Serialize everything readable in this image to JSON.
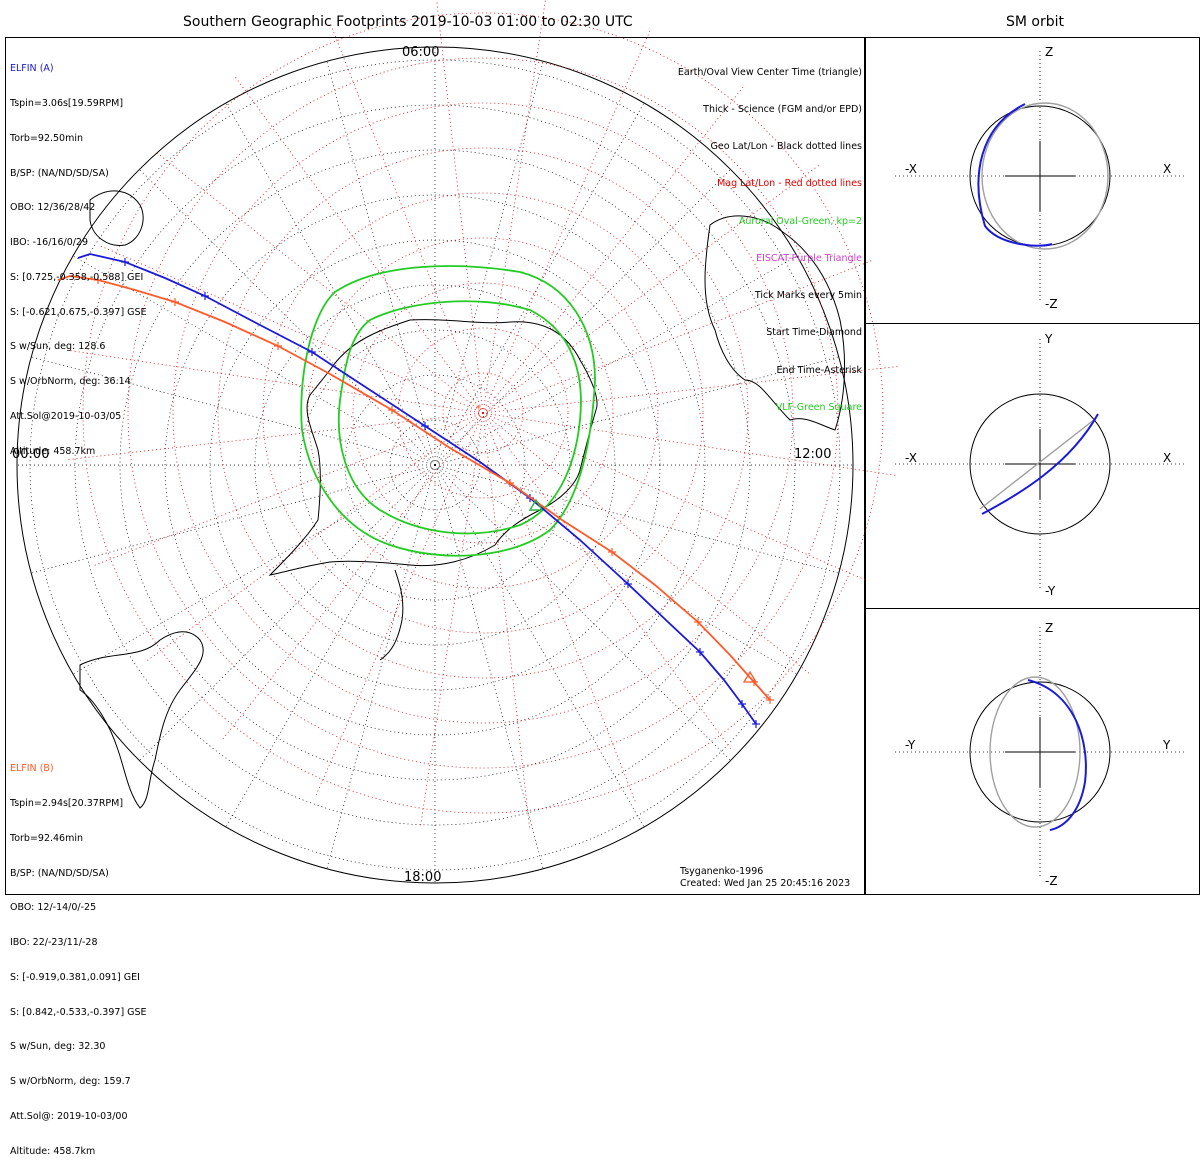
{
  "main_title": "Southern Geographic Footprints 2019-10-03 01:00 to 02:30 UTC",
  "orbit_title": "SM orbit",
  "mlt_labels": {
    "top": "06:00",
    "left": "00:00",
    "right": "12:00",
    "bottom": "18:00"
  },
  "elfin_a": {
    "name": "ELFIN (A)",
    "color": "#1a1ad8",
    "lines": [
      "Tspin=3.06s[19.59RPM]",
      "Torb=92.50min",
      "B/SP: (NA/ND/SD/SA)",
      "OBO: 12/36/28/42",
      "IBO: -16/16/0/29",
      "S: [0.725,-0.358,-0.588] GEI",
      "S: [-0.621,0.675,-0.397] GSE",
      "S w/Sun, deg: 128.6",
      "S w/OrbNorm, deg: 36.14",
      "Att.Sol@2019-10-03/05",
      "Altitude: 458.7km"
    ]
  },
  "elfin_b": {
    "name": "ELFIN (B)",
    "color": "#ff5a2a",
    "lines": [
      "Tspin=2.94s[20.37RPM]",
      "Torb=92.46min",
      "B/SP: (NA/ND/SD/SA)",
      "OBO: 12/-14/0/-25",
      "IBO: 22/-23/11/-28",
      "S: [-0.919,0.381,0.091] GEI",
      "S: [0.842,-0.533,-0.397] GSE",
      "S w/Sun, deg: 32.30",
      "S w/OrbNorm, deg: 159.7",
      "Att.Sol@: 2019-10-03/00",
      "Altitude: 458.7km"
    ]
  },
  "legend": [
    {
      "text": "Earth/Oval View Center Time (triangle)",
      "color": "#000000"
    },
    {
      "text": "Thick - Science (FGM and/or EPD)",
      "color": "#000000"
    },
    {
      "text": "Geo Lat/Lon - Black dotted lines",
      "color": "#000000"
    },
    {
      "text": "Mag Lat/Lon - Red dotted lines",
      "color": "#e00000"
    },
    {
      "text": "Auroral Oval-Green, kp=2",
      "color": "#22cc22"
    },
    {
      "text": "EISCAT-Purple Triangle",
      "color": "#d040d0"
    },
    {
      "text": "Tick Marks every 5min",
      "color": "#000000"
    },
    {
      "text": "Start Time-Diamond",
      "color": "#000000"
    },
    {
      "text": "End Time-Asterisk",
      "color": "#000000"
    },
    {
      "text": "VLF-Green Square",
      "color": "#22cc22"
    }
  ],
  "footer": {
    "model": "Tsyganenko-1996",
    "created": "Created: Wed Jan 25 20:45:16 2023"
  },
  "orbit_panels": [
    {
      "top": "Z",
      "bottom": "-Z",
      "left": "-X",
      "right": "X"
    },
    {
      "top": "Y",
      "bottom": "-Y",
      "left": "-X",
      "right": "X"
    },
    {
      "top": "Z",
      "bottom": "-Z",
      "left": "-Y",
      "right": "Y"
    }
  ],
  "colors": {
    "elfin_a": "#1a1ad8",
    "elfin_b": "#ff5a2a",
    "oval": "#22cc22",
    "mag_grid": "#e00000",
    "orbit_gray": "#a0a0a0"
  },
  "chart_data": {
    "type": "map",
    "title": "Southern Geographic Footprints 2019-10-03 01:00 to 02:30 UTC",
    "projection": "southern polar view, geographic coordinates",
    "series": [
      {
        "name": "ELFIN (A)",
        "color": "#1a1ad8",
        "tick_interval_min": 5
      },
      {
        "name": "ELFIN (B)",
        "color": "#ff5a2a",
        "tick_interval_min": 5
      }
    ],
    "auroral_oval_kp": 2
  }
}
